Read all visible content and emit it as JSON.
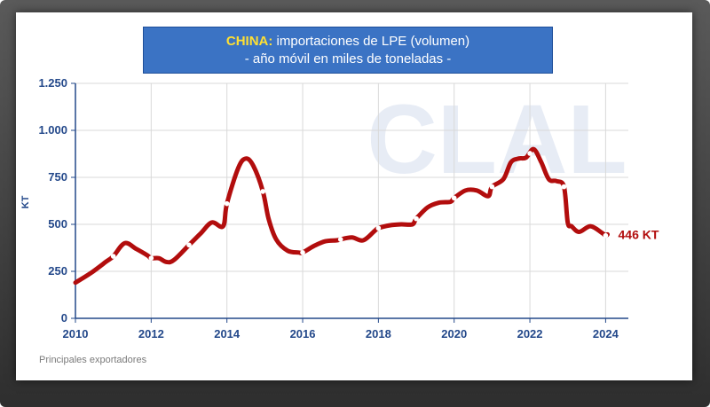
{
  "title": {
    "highlight": "CHINA:",
    "text": "importaciones de LPE (volumen)",
    "subtitle": "- año móvil en miles de toneladas -"
  },
  "watermark": "CLAL",
  "footer": "Principales exportadores",
  "colors": {
    "line": "#b20d0d",
    "marker_fill": "#ffffff",
    "axis_text": "#23488a",
    "title_bg": "#3b73c4",
    "title_highlight": "#ffe033",
    "grid": "#d9d9d9"
  },
  "chart_data": {
    "type": "line",
    "ylabel": "KT",
    "ylim": [
      0,
      1250
    ],
    "xlim": [
      2010,
      2024.6
    ],
    "y_ticks": [
      0,
      250,
      500,
      750,
      1000,
      1250
    ],
    "y_tick_labels": [
      "0",
      "250",
      "500",
      "750",
      "1.000",
      "1.250"
    ],
    "x_ticks": [
      2010,
      2012,
      2014,
      2016,
      2018,
      2020,
      2022,
      2024
    ],
    "x_tick_labels": [
      "2010",
      "2012",
      "2014",
      "2016",
      "2018",
      "2020",
      "2022",
      "2024"
    ],
    "grid": true,
    "end_label": "446 KT",
    "series": [
      {
        "x": [
          2010.0,
          2010.4,
          2010.8,
          2011.0,
          2011.3,
          2011.6,
          2011.9,
          2012.0,
          2012.2,
          2012.4,
          2012.6,
          2013.0,
          2013.3,
          2013.6,
          2013.9,
          2014.0,
          2014.3,
          2014.5,
          2014.7,
          2014.95,
          2015.1,
          2015.3,
          2015.6,
          2015.9,
          2016.0,
          2016.3,
          2016.6,
          2016.9,
          2017.0,
          2017.3,
          2017.6,
          2017.9,
          2018.0,
          2018.3,
          2018.6,
          2018.9,
          2019.0,
          2019.3,
          2019.6,
          2019.9,
          2020.0,
          2020.3,
          2020.6,
          2020.9,
          2021.0,
          2021.3,
          2021.5,
          2021.7,
          2021.9,
          2022.1,
          2022.3,
          2022.5,
          2022.7,
          2022.9,
          2023.0,
          2023.1,
          2023.3,
          2023.6,
          2023.9,
          2024.0,
          2024.05
        ],
        "y": [
          190,
          240,
          300,
          330,
          400,
          370,
          335,
          320,
          320,
          300,
          310,
          390,
          450,
          510,
          490,
          610,
          800,
          850,
          810,
          675,
          530,
          420,
          360,
          350,
          350,
          385,
          410,
          415,
          420,
          430,
          415,
          465,
          480,
          495,
          500,
          500,
          530,
          590,
          615,
          620,
          640,
          680,
          680,
          650,
          700,
          740,
          830,
          850,
          855,
          900,
          830,
          740,
          730,
          700,
          510,
          490,
          460,
          490,
          455,
          440,
          446
        ]
      }
    ],
    "markers_x": [
      2011.0,
      2012.0,
      2013.0,
      2014.0,
      2014.95,
      2016.0,
      2017.0,
      2018.0,
      2019.0,
      2020.0,
      2021.0,
      2022.0,
      2022.9,
      2024.0
    ]
  }
}
